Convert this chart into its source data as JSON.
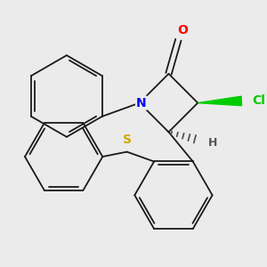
{
  "background_color": "#ebebeb",
  "bond_color": "#1a1a1a",
  "atom_colors": {
    "O": "#ff0000",
    "N": "#0000ff",
    "Cl": "#00cc00",
    "S": "#ccaa00",
    "H": "#555555",
    "C": "#1a1a1a"
  },
  "figsize": [
    3.0,
    3.0
  ],
  "dpi": 100,
  "lw": 1.3
}
